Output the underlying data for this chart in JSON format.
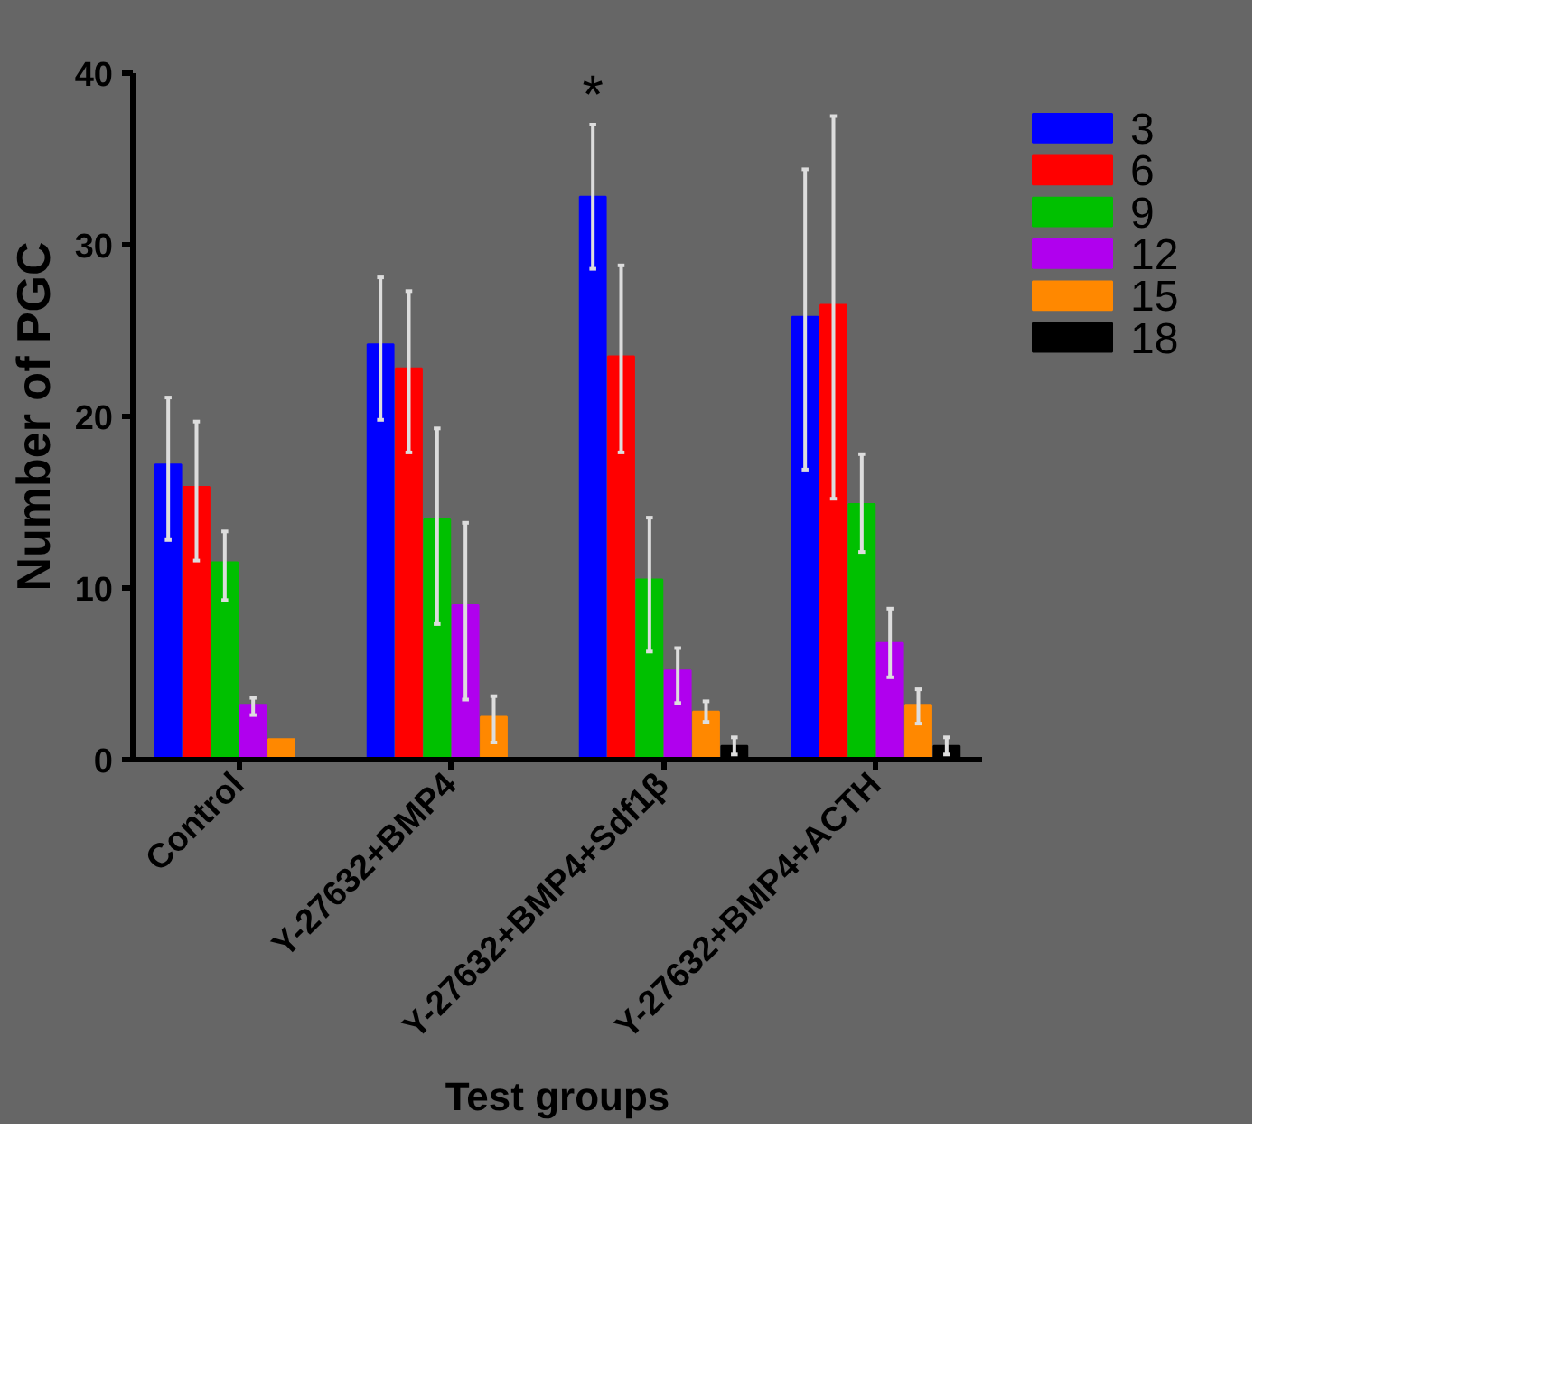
{
  "chart_data": {
    "type": "bar",
    "xlabel": "Test groups",
    "ylabel": "Number of PGC",
    "categories": [
      "Control",
      "Y-27632+BMP4",
      "Y-27632+BMP4+Sdf1β",
      "Y-27632+BMP4+ACTH"
    ],
    "series": [
      {
        "name": "3",
        "color": "#0000ff",
        "values": [
          17.2,
          24.2,
          32.8,
          25.8
        ],
        "errors": [
          [
            12.8,
            21.1
          ],
          [
            19.8,
            28.1
          ],
          [
            28.6,
            37
          ],
          [
            16.9,
            34.4
          ]
        ]
      },
      {
        "name": "6",
        "color": "#ff0000",
        "values": [
          15.9,
          22.8,
          23.5,
          26.5
        ],
        "errors": [
          [
            11.6,
            19.7
          ],
          [
            17.9,
            27.3
          ],
          [
            17.9,
            28.8
          ],
          [
            15.2,
            37.5
          ]
        ]
      },
      {
        "name": "9",
        "color": "#00c000",
        "values": [
          11.5,
          14,
          10.5,
          14.9
        ],
        "errors": [
          [
            9.3,
            13.3
          ],
          [
            7.9,
            19.3
          ],
          [
            6.3,
            14.1
          ],
          [
            12.1,
            17.8
          ]
        ]
      },
      {
        "name": "12",
        "color": "#b000ee",
        "values": [
          3.2,
          9,
          5.2,
          6.8
        ],
        "errors": [
          [
            2.6,
            3.6
          ],
          [
            3.5,
            13.8
          ],
          [
            3.3,
            6.5
          ],
          [
            4.8,
            8.8
          ]
        ]
      },
      {
        "name": "15",
        "color": "#ff8800",
        "values": [
          1.2,
          2.5,
          2.8,
          3.2
        ],
        "errors": [
          null,
          [
            1.0,
            3.7
          ],
          [
            2.2,
            3.4
          ],
          [
            2.1,
            4.1
          ]
        ]
      },
      {
        "name": "18",
        "color": "#000000",
        "values": [
          null,
          null,
          0.8,
          0.8
        ],
        "errors": [
          null,
          null,
          [
            0.3,
            1.3
          ],
          [
            0.3,
            1.3
          ]
        ]
      }
    ],
    "ylim": [
      0,
      40
    ],
    "yticks": [
      0,
      10,
      20,
      30,
      40
    ],
    "grid": false,
    "legend": "right",
    "annotations": [
      "*"
    ]
  }
}
